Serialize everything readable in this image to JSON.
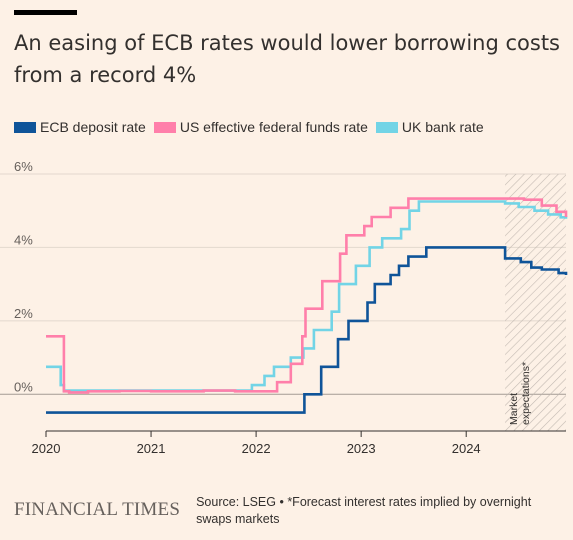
{
  "header": {
    "title": "An easing of ECB rates would lower borrowing costs from a record 4%"
  },
  "footer": {
    "logo": "FINANCIAL TIMES",
    "source": "Source: LSEG • *Forecast interest rates implied by overnight swaps markets"
  },
  "chart_data": {
    "type": "line",
    "title": "An easing of ECB rates would lower borrowing costs from a record 4%",
    "xlabel": "",
    "ylabel": "",
    "xlim": [
      2020.0,
      2024.95
    ],
    "ylim": [
      -1,
      6
    ],
    "y_ticks": [
      0,
      2,
      4,
      6
    ],
    "y_tick_labels": [
      "0%",
      "2%",
      "4%",
      "6%"
    ],
    "x_ticks": [
      2020,
      2021,
      2022,
      2023,
      2024
    ],
    "x_tick_labels": [
      "2020",
      "2021",
      "2022",
      "2023",
      "2024"
    ],
    "grid": "horizontal",
    "legend_position": "top",
    "annotation": {
      "text": "Market expectations*",
      "region": [
        2024.37,
        2024.95
      ]
    },
    "series": [
      {
        "name": "ECB deposit rate",
        "color": "#0f5499",
        "step": true,
        "points": [
          [
            2020.0,
            -0.5
          ],
          [
            2022.46,
            0.0
          ],
          [
            2022.62,
            0.75
          ],
          [
            2022.78,
            1.5
          ],
          [
            2022.88,
            2.0
          ],
          [
            2023.06,
            2.5
          ],
          [
            2023.13,
            3.0
          ],
          [
            2023.28,
            3.25
          ],
          [
            2023.36,
            3.5
          ],
          [
            2023.45,
            3.75
          ],
          [
            2023.62,
            4.0
          ],
          [
            2024.37,
            3.7
          ],
          [
            2024.52,
            3.6
          ],
          [
            2024.62,
            3.45
          ],
          [
            2024.72,
            3.4
          ],
          [
            2024.88,
            3.3
          ],
          [
            2024.95,
            3.25
          ]
        ]
      },
      {
        "name": "US effective federal funds rate",
        "color": "#ff7faa",
        "step": true,
        "points": [
          [
            2020.0,
            1.58
          ],
          [
            2020.17,
            0.08
          ],
          [
            2020.22,
            0.05
          ],
          [
            2020.4,
            0.08
          ],
          [
            2020.7,
            0.09
          ],
          [
            2021.0,
            0.08
          ],
          [
            2021.5,
            0.1
          ],
          [
            2021.8,
            0.08
          ],
          [
            2022.15,
            0.08
          ],
          [
            2022.2,
            0.33
          ],
          [
            2022.33,
            0.83
          ],
          [
            2022.44,
            1.58
          ],
          [
            2022.47,
            2.33
          ],
          [
            2022.63,
            3.08
          ],
          [
            2022.72,
            3.08
          ],
          [
            2022.8,
            3.83
          ],
          [
            2022.86,
            4.33
          ],
          [
            2023.03,
            4.58
          ],
          [
            2023.1,
            4.83
          ],
          [
            2023.28,
            5.08
          ],
          [
            2023.42,
            5.08
          ],
          [
            2023.45,
            5.33
          ],
          [
            2024.37,
            5.33
          ],
          [
            2024.55,
            5.3
          ],
          [
            2024.72,
            5.14
          ],
          [
            2024.86,
            4.97
          ],
          [
            2024.95,
            4.83
          ]
        ]
      },
      {
        "name": "UK bank rate",
        "color": "#72d4e6",
        "step": true,
        "points": [
          [
            2020.0,
            0.75
          ],
          [
            2020.12,
            0.75
          ],
          [
            2020.14,
            0.25
          ],
          [
            2020.17,
            0.1
          ],
          [
            2021.92,
            0.1
          ],
          [
            2021.96,
            0.25
          ],
          [
            2022.08,
            0.5
          ],
          [
            2022.17,
            0.75
          ],
          [
            2022.33,
            1.0
          ],
          [
            2022.45,
            1.25
          ],
          [
            2022.55,
            1.75
          ],
          [
            2022.72,
            2.25
          ],
          [
            2022.79,
            3.0
          ],
          [
            2022.95,
            3.5
          ],
          [
            2023.08,
            4.0
          ],
          [
            2023.2,
            4.25
          ],
          [
            2023.38,
            4.5
          ],
          [
            2023.46,
            5.0
          ],
          [
            2023.55,
            5.25
          ],
          [
            2024.37,
            5.2
          ],
          [
            2024.5,
            5.1
          ],
          [
            2024.65,
            5.0
          ],
          [
            2024.78,
            4.9
          ],
          [
            2024.9,
            4.82
          ],
          [
            2024.95,
            4.78
          ]
        ]
      }
    ]
  }
}
